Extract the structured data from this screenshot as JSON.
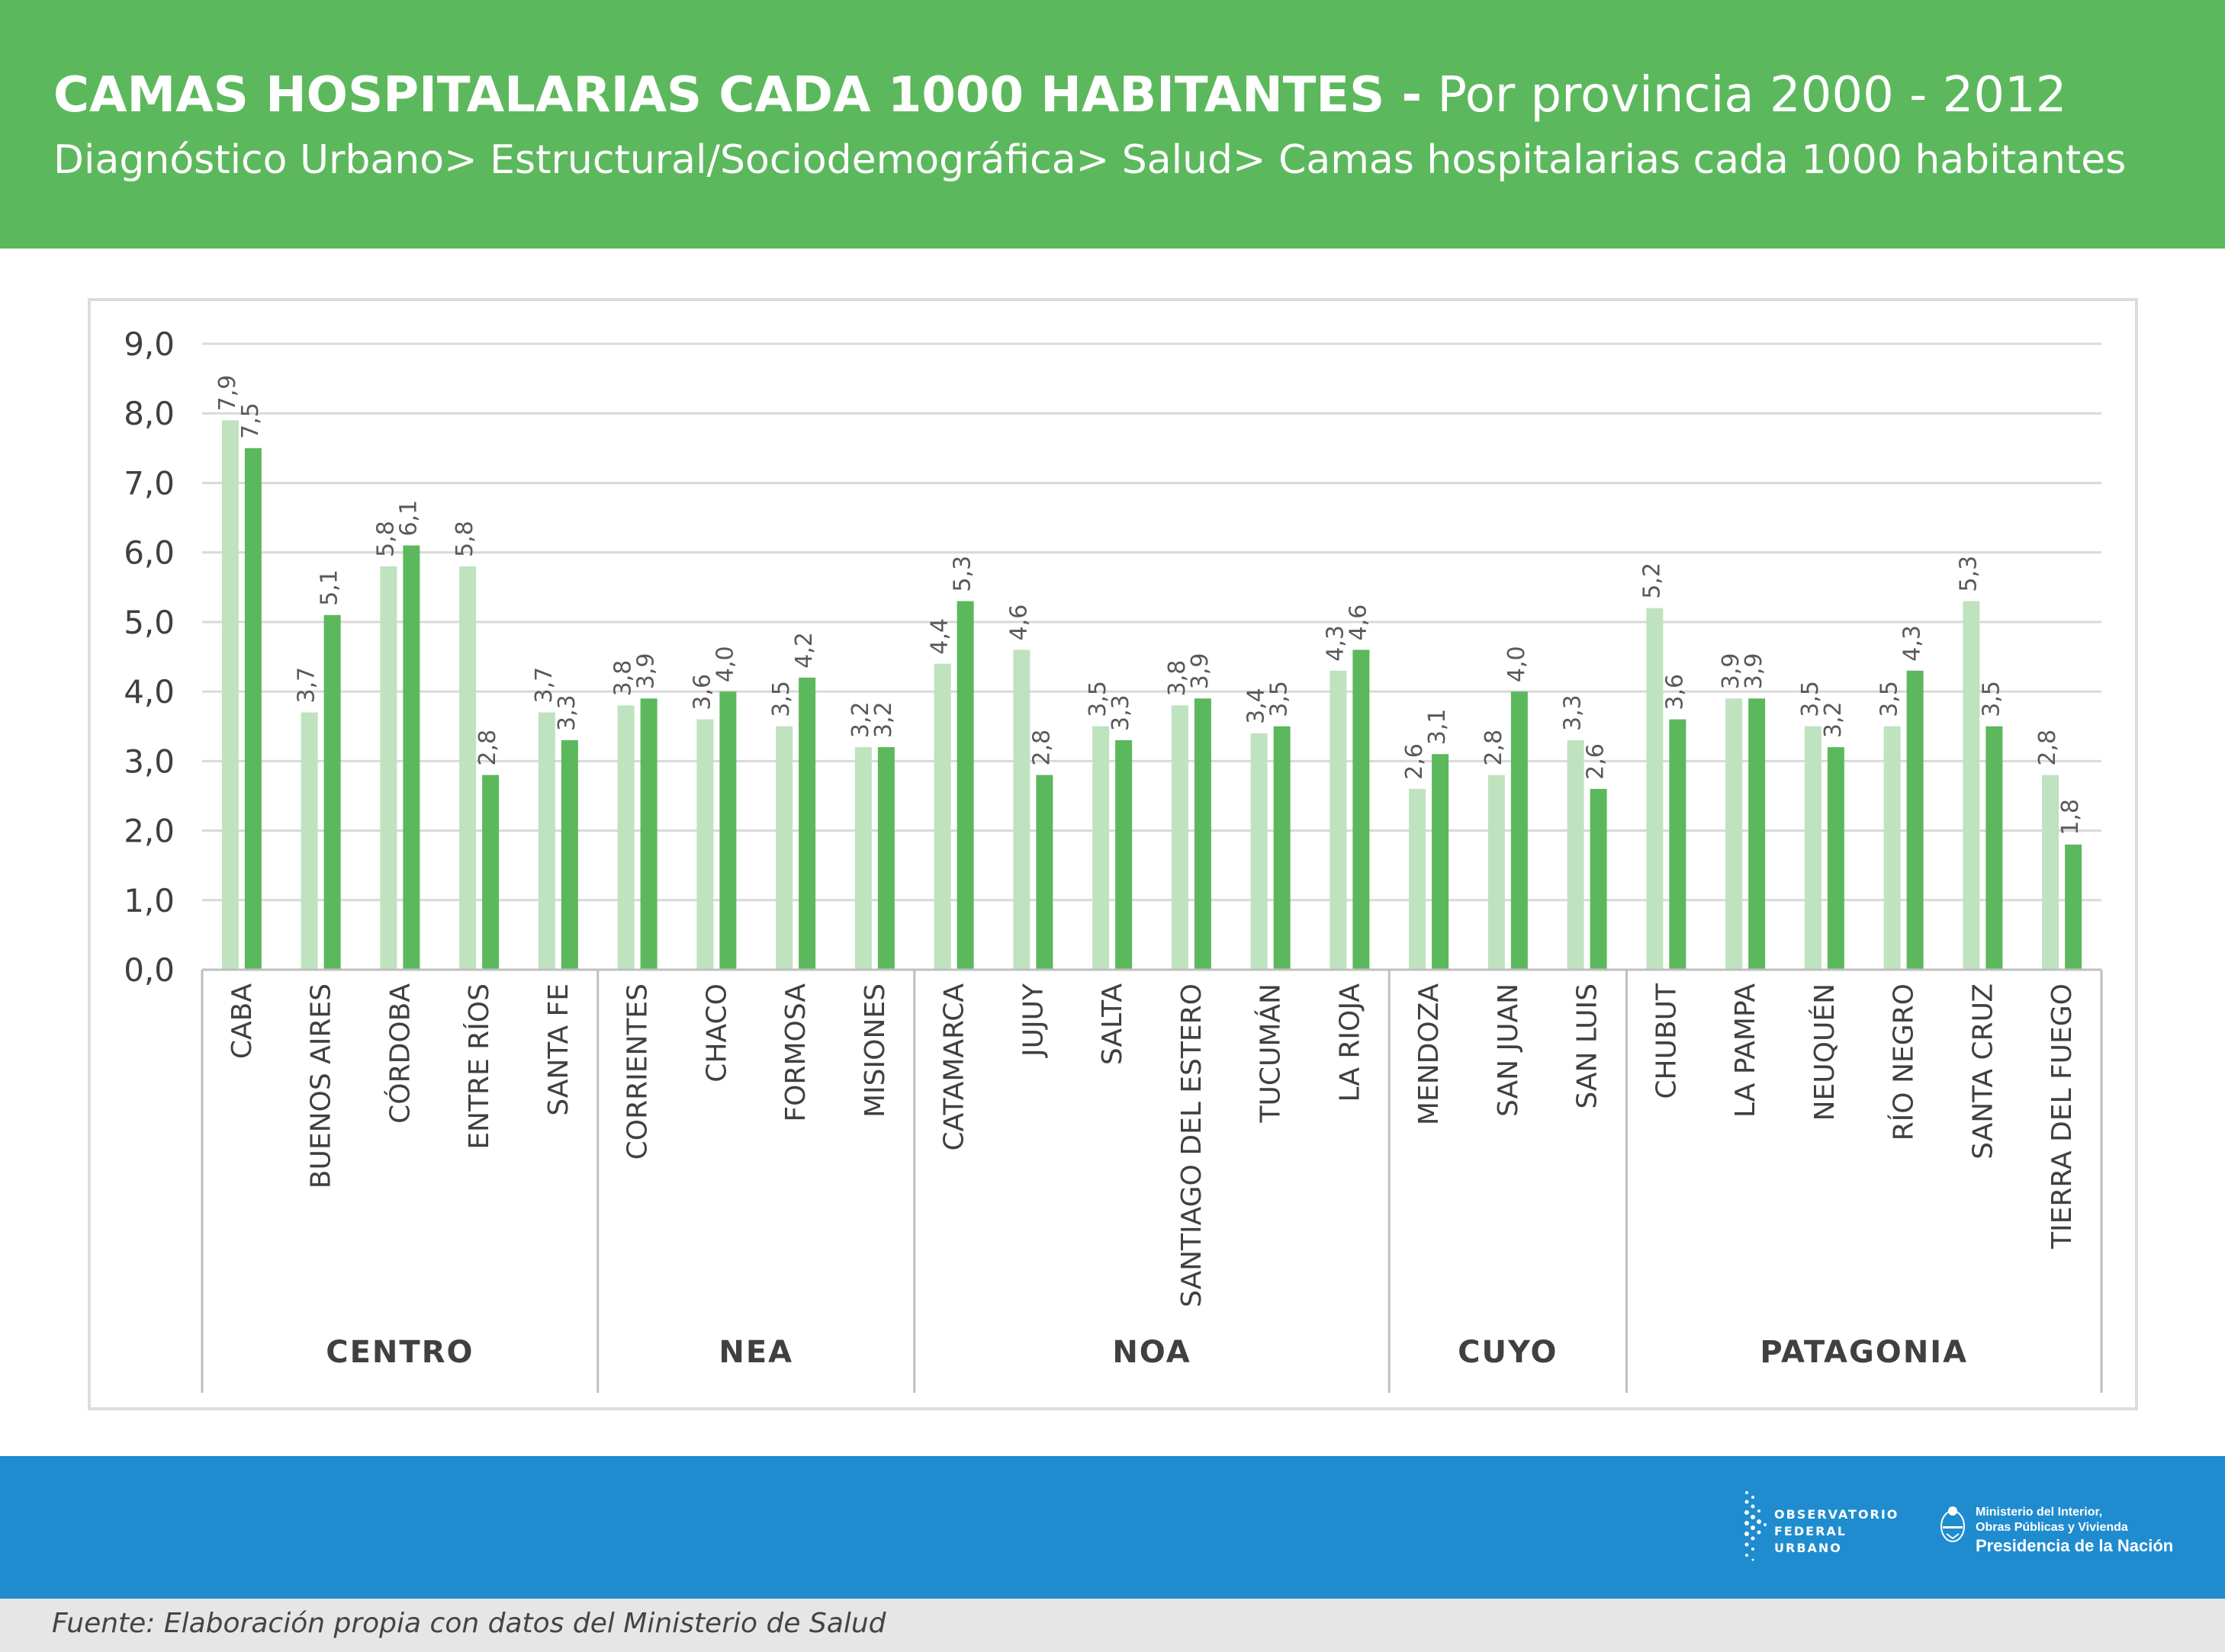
{
  "header": {
    "title_bold": "CAMAS HOSPITALARIAS CADA 1000 HABITANTES -",
    "title_thin": "Por provincia 2000 - 2012",
    "subtitle": "Diagnóstico Urbano> Estructural/Sociodemográfica> Salud> Camas hospitalarias cada 1000 habitantes",
    "bg_color": "#5cb85c"
  },
  "footer": {
    "source": "Fuente: Elaboración propia con datos del Ministerio de Salud",
    "band_color": "#1f8ccf",
    "logo_observatorio": [
      "OBSERVATORIO",
      "FEDERAL",
      "URBANO"
    ],
    "logo_ministerio": [
      "Ministerio del Interior,",
      "Obras Públicas y Vivienda",
      "Presidencia de la Nación"
    ]
  },
  "chart_data": {
    "type": "bar",
    "ylim": [
      0,
      9
    ],
    "yticks": [
      "0,0",
      "1,0",
      "2,0",
      "3,0",
      "4,0",
      "5,0",
      "6,0",
      "7,0",
      "8,0",
      "9,0"
    ],
    "grid": true,
    "categories": [
      "CABA",
      "BUENOS AIRES",
      "CÓRDOBA",
      "ENTRE RÍOS",
      "SANTA FE",
      "CORRIENTES",
      "CHACO",
      "FORMOSA",
      "MISIONES",
      "CATAMARCA",
      "JUJUY",
      "SALTA",
      "SANTIAGO DEL ESTERO",
      "TUCUMÁN",
      "LA RIOJA",
      "MENDOZA",
      "SAN JUAN",
      "SAN LUIS",
      "CHUBUT",
      "LA PAMPA",
      "NEUQUÉN",
      "RÍO NEGRO",
      "SANTA CRUZ",
      "TIERRA DEL FUEGO"
    ],
    "groups": [
      {
        "name": "CENTRO",
        "count": 5
      },
      {
        "name": "NEA",
        "count": 4
      },
      {
        "name": "NOA",
        "count": 6
      },
      {
        "name": "CUYO",
        "count": 3
      },
      {
        "name": "PATAGONIA",
        "count": 6
      }
    ],
    "series": [
      {
        "color": "#bfe2bf",
        "values": [
          7.9,
          3.7,
          5.8,
          5.8,
          3.7,
          3.8,
          3.6,
          3.5,
          3.2,
          4.4,
          4.6,
          3.5,
          3.8,
          3.4,
          4.3,
          2.6,
          2.8,
          3.3,
          5.2,
          3.9,
          3.5,
          3.5,
          5.3,
          2.8
        ],
        "labels": [
          "7,9",
          "3,7",
          "5,8",
          "5,8",
          "3,7",
          "3,8",
          "3,6",
          "3,5",
          "3,2",
          "4,4",
          "4,6",
          "3,5",
          "3,8",
          "3,4",
          "4,3",
          "2,6",
          "2,8",
          "3,3",
          "5,2",
          "3,9",
          "3,5",
          "3,5",
          "5,3",
          "2,8"
        ]
      },
      {
        "color": "#5cb85c",
        "values": [
          7.5,
          5.1,
          6.1,
          2.8,
          3.3,
          3.9,
          4.0,
          4.2,
          3.2,
          5.3,
          2.8,
          3.3,
          3.9,
          3.5,
          4.6,
          3.1,
          4.0,
          2.6,
          3.6,
          3.9,
          3.2,
          4.3,
          3.5,
          1.8
        ],
        "labels": [
          "7,5",
          "5,1",
          "6,1",
          "2,8",
          "3,3",
          "3,9",
          "4,0",
          "4,2",
          "3,2",
          "5,3",
          "2,8",
          "3,3",
          "3,9",
          "3,5",
          "4,6",
          "3,1",
          "4,0",
          "2,6",
          "3,6",
          "3,9",
          "3,2",
          "4,3",
          "3,5",
          "1,8"
        ]
      }
    ],
    "colors": {
      "grid": "#d9d9d9",
      "axis": "#bfbfbf",
      "tick_text": "#404040",
      "label_text": "#595959"
    }
  }
}
